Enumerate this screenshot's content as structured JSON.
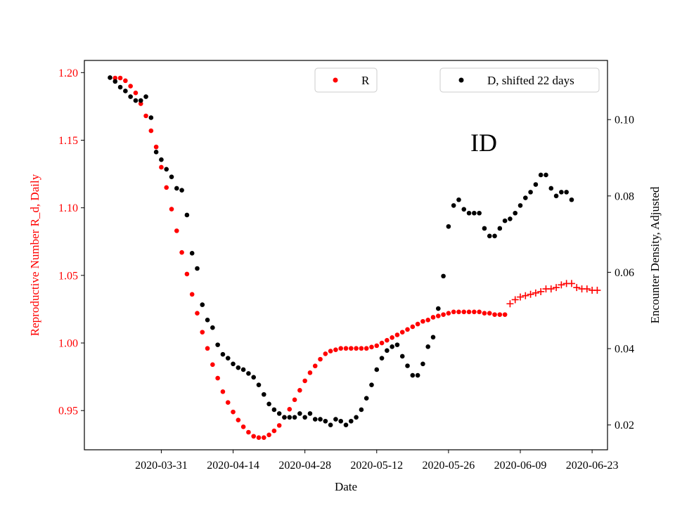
{
  "chart_data": {
    "type": "scatter",
    "annotation": "ID",
    "xlabel": "Date",
    "ylabel_left": "Reproductive Number R_d, Daily",
    "ylabel_right": "Encounter Density, Adjusted",
    "x_ticks": [
      "2020-03-31",
      "2020-04-14",
      "2020-04-28",
      "2020-05-12",
      "2020-05-26",
      "2020-06-09",
      "2020-06-23"
    ],
    "y_left_ticks": [
      "0.95",
      "1.00",
      "1.05",
      "1.10",
      "1.15",
      "1.20"
    ],
    "y_right_ticks": [
      "0.02",
      "0.04",
      "0.06",
      "0.08",
      "0.10"
    ],
    "x_range": [
      "2020-03-16",
      "2020-06-26"
    ],
    "y_left_range": [
      0.921,
      1.209
    ],
    "y_right_range": [
      0.0135,
      0.1155
    ],
    "colors": {
      "R": "#ff0000",
      "D": "#000000",
      "left_axis": "#ff0000",
      "right_axis": "#000000"
    },
    "legend": [
      {
        "label": "R",
        "color": "#ff0000",
        "marker": "dot",
        "placement": "top-center"
      },
      {
        "label": "D, shifted 22 days",
        "color": "#000000",
        "marker": "dot",
        "placement": "top-right"
      }
    ],
    "series": [
      {
        "name": "R",
        "axis": "left",
        "marker": "dot",
        "color": "#ff0000",
        "start_date": "2020-03-22",
        "values": [
          1.196,
          1.196,
          1.194,
          1.19,
          1.185,
          1.177,
          1.168,
          1.157,
          1.145,
          1.13,
          1.115,
          1.099,
          1.083,
          1.067,
          1.051,
          1.036,
          1.022,
          1.008,
          0.996,
          0.984,
          0.974,
          0.964,
          0.956,
          0.949,
          0.943,
          0.938,
          0.934,
          0.931,
          0.93,
          0.93,
          0.932,
          0.935,
          0.939,
          0.945,
          0.951,
          0.958,
          0.965,
          0.972,
          0.978,
          0.983,
          0.988,
          0.992,
          0.994,
          0.995,
          0.996,
          0.996,
          0.996,
          0.996,
          0.996,
          0.996,
          0.997,
          0.998,
          1.0,
          1.002,
          1.004,
          1.006,
          1.008,
          1.01,
          1.012,
          1.014,
          1.016,
          1.017,
          1.019,
          1.02,
          1.021,
          1.022,
          1.023,
          1.023,
          1.023,
          1.023,
          1.023,
          1.023,
          1.022,
          1.022,
          1.021,
          1.021,
          1.021
        ]
      },
      {
        "name": "R",
        "axis": "left",
        "marker": "plus",
        "color": "#ff0000",
        "start_date": "2020-06-07",
        "values": [
          1.029,
          1.032,
          1.034,
          1.035,
          1.036,
          1.037,
          1.038,
          1.04,
          1.04,
          1.041,
          1.043,
          1.044,
          1.044,
          1.041,
          1.04,
          1.04,
          1.039,
          1.039
        ]
      },
      {
        "name": "D, shifted 22 days",
        "axis": "right",
        "marker": "dot",
        "color": "#000000",
        "start_date": "2020-03-21",
        "values": [
          0.111,
          0.11,
          0.1085,
          0.1075,
          0.106,
          0.105,
          0.105,
          0.106,
          0.1005,
          0.0915,
          0.0895,
          0.087,
          0.085,
          0.082,
          0.0815,
          0.075,
          0.065,
          0.061,
          0.0515,
          0.0475,
          0.0455,
          0.041,
          0.0385,
          0.0375,
          0.036,
          0.035,
          0.0345,
          0.0335,
          0.0325,
          0.0305,
          0.028,
          0.0255,
          0.024,
          0.023,
          0.022,
          0.022,
          0.022,
          0.023,
          0.022,
          0.023,
          0.0215,
          0.0215,
          0.021,
          0.02,
          0.0215,
          0.021,
          0.02,
          0.021,
          0.022,
          0.024,
          0.027,
          0.0305,
          0.0345,
          0.0375,
          0.0395,
          0.0405,
          0.041,
          0.038,
          0.0355,
          0.033,
          0.033,
          0.036,
          0.0405,
          0.043,
          0.0505,
          0.059,
          0.072,
          0.0775,
          0.079,
          0.0765,
          0.0755,
          0.0755,
          0.0755,
          0.0715,
          0.0695,
          0.0695,
          0.0715,
          0.0735,
          0.074,
          0.0755,
          0.0775,
          0.0795,
          0.081,
          0.083,
          0.0855,
          0.0855,
          0.082,
          0.08,
          0.081,
          0.081,
          0.079
        ]
      }
    ]
  }
}
